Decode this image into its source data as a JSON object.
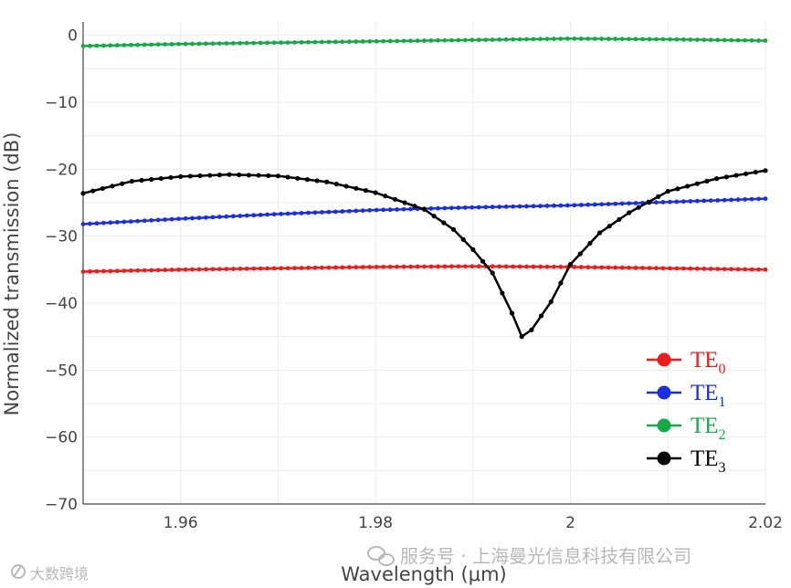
{
  "chart_data": {
    "type": "line",
    "title": "",
    "xlabel": "Wavelength (μm)",
    "ylabel": "Normalized transmission (dB)",
    "xlim": [
      1.95,
      2.02
    ],
    "ylim": [
      -70,
      2
    ],
    "x_ticks": [
      1.96,
      1.98,
      2.0,
      2.02
    ],
    "x_tick_labels": [
      "1.96",
      "1.98",
      "2",
      "2.02"
    ],
    "y_ticks": [
      0,
      -10,
      -20,
      -30,
      -40,
      -50,
      -60,
      -70
    ],
    "y_tick_labels": [
      "0",
      "−10",
      "−20",
      "−30",
      "−40",
      "−50",
      "−60",
      "−70"
    ],
    "grid": true,
    "legend_position": "bottom-right",
    "series": [
      {
        "name": "TE0",
        "label_main": "TE",
        "label_sub": "0",
        "color": "#ee1c1c",
        "x": [
          1.95,
          1.96,
          1.97,
          1.98,
          1.99,
          2.0,
          2.01,
          2.02
        ],
        "y": [
          -35.3,
          -35.0,
          -34.8,
          -34.6,
          -34.5,
          -34.6,
          -34.8,
          -35.0
        ]
      },
      {
        "name": "TE1",
        "label_main": "TE",
        "label_sub": "1",
        "color": "#1c2fe0",
        "x": [
          1.95,
          1.96,
          1.97,
          1.98,
          1.99,
          2.0,
          2.01,
          2.02
        ],
        "y": [
          -28.2,
          -27.4,
          -26.7,
          -26.1,
          -25.7,
          -25.4,
          -24.9,
          -24.4
        ]
      },
      {
        "name": "TE2",
        "label_main": "TE",
        "label_sub": "2",
        "color": "#17a84a",
        "x": [
          1.95,
          1.96,
          1.97,
          1.98,
          1.99,
          2.0,
          2.01,
          2.02
        ],
        "y": [
          -1.6,
          -1.3,
          -1.1,
          -0.9,
          -0.7,
          -0.5,
          -0.6,
          -0.8
        ]
      },
      {
        "name": "TE3",
        "label_main": "TE",
        "label_sub": "3",
        "color": "#000000",
        "x": [
          1.95,
          1.955,
          1.96,
          1.965,
          1.97,
          1.975,
          1.98,
          1.985,
          1.988,
          1.99,
          1.992,
          1.994,
          1.995,
          1.996,
          1.998,
          2.0,
          2.003,
          2.006,
          2.01,
          2.015,
          2.02
        ],
        "y": [
          -23.6,
          -21.8,
          -21.1,
          -20.8,
          -21.0,
          -21.9,
          -23.5,
          -26.0,
          -29.0,
          -32.0,
          -35.5,
          -41.5,
          -45.0,
          -44.0,
          -39.8,
          -34.2,
          -29.5,
          -26.5,
          -23.3,
          -21.4,
          -20.2
        ]
      }
    ]
  },
  "watermark": {
    "left_text": "大数跨境",
    "right_text": "服务号 · 上海曼光信息科技有限公司",
    "left_icon": "wechat-channels-icon",
    "right_icon": "wechat-icon"
  }
}
